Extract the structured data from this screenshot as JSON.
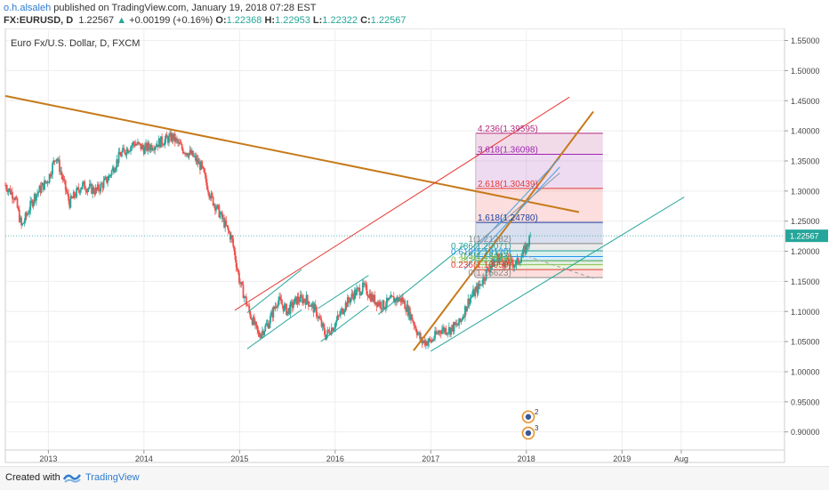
{
  "header": {
    "author": "o.h.alsaleh",
    "published": " published on TradingView.com, January 19, 2018 07:28 EST"
  },
  "quote": {
    "symbol": "FX:EURUSD, D",
    "last": "1.22567",
    "change": "+0.00199 (+0.16%)",
    "o_label": "O:",
    "o": "1.22368",
    "h_label": "H:",
    "h": "1.22953",
    "l_label": "L:",
    "l": "1.22322",
    "c_label": "C:",
    "c": "1.22567"
  },
  "footer": {
    "created": "Created with",
    "brand": "TradingView"
  },
  "chart_data": {
    "type": "candlestick",
    "title": "Euro Fx/U.S. Dollar, D, FXCM",
    "ylim": [
      0.87,
      1.57
    ],
    "xlim": [
      2012.55,
      2020.7
    ],
    "y_ticks": [
      "1.55000",
      "1.50000",
      "1.45000",
      "1.40000",
      "1.35000",
      "1.30000",
      "1.25000",
      "1.20000",
      "1.15000",
      "1.10000",
      "1.05000",
      "1.00000",
      "0.95000",
      "0.90000"
    ],
    "x_ticks": [
      {
        "label": "2013",
        "x": 2013.0
      },
      {
        "label": "2014",
        "x": 2014.0
      },
      {
        "label": "2015",
        "x": 2015.0
      },
      {
        "label": "2016",
        "x": 2016.0
      },
      {
        "label": "2017",
        "x": 2017.0
      },
      {
        "label": "2018",
        "x": 2018.0
      },
      {
        "label": "2019",
        "x": 2019.0
      },
      {
        "label": "Aug",
        "x": 2019.62
      }
    ],
    "price_path": [
      [
        2012.55,
        1.31
      ],
      [
        2012.65,
        1.29
      ],
      [
        2012.72,
        1.24
      ],
      [
        2012.85,
        1.29
      ],
      [
        2013.0,
        1.32
      ],
      [
        2013.08,
        1.36
      ],
      [
        2013.22,
        1.28
      ],
      [
        2013.35,
        1.31
      ],
      [
        2013.5,
        1.3
      ],
      [
        2013.62,
        1.32
      ],
      [
        2013.75,
        1.36
      ],
      [
        2013.9,
        1.38
      ],
      [
        2014.0,
        1.37
      ],
      [
        2014.15,
        1.38
      ],
      [
        2014.3,
        1.39
      ],
      [
        2014.4,
        1.37
      ],
      [
        2014.5,
        1.36
      ],
      [
        2014.6,
        1.34
      ],
      [
        2014.7,
        1.29
      ],
      [
        2014.8,
        1.26
      ],
      [
        2014.92,
        1.22
      ],
      [
        2015.0,
        1.15
      ],
      [
        2015.1,
        1.1
      ],
      [
        2015.2,
        1.06
      ],
      [
        2015.3,
        1.08
      ],
      [
        2015.4,
        1.12
      ],
      [
        2015.5,
        1.1
      ],
      [
        2015.6,
        1.12
      ],
      [
        2015.7,
        1.12
      ],
      [
        2015.8,
        1.1
      ],
      [
        2015.9,
        1.06
      ],
      [
        2016.0,
        1.08
      ],
      [
        2016.1,
        1.11
      ],
      [
        2016.2,
        1.13
      ],
      [
        2016.3,
        1.14
      ],
      [
        2016.4,
        1.12
      ],
      [
        2016.5,
        1.11
      ],
      [
        2016.6,
        1.12
      ],
      [
        2016.7,
        1.12
      ],
      [
        2016.8,
        1.09
      ],
      [
        2016.9,
        1.05
      ],
      [
        2017.0,
        1.05
      ],
      [
        2017.1,
        1.07
      ],
      [
        2017.2,
        1.07
      ],
      [
        2017.3,
        1.08
      ],
      [
        2017.4,
        1.12
      ],
      [
        2017.5,
        1.14
      ],
      [
        2017.6,
        1.17
      ],
      [
        2017.7,
        1.19
      ],
      [
        2017.8,
        1.18
      ],
      [
        2017.9,
        1.18
      ],
      [
        2017.98,
        1.2
      ],
      [
        2018.05,
        1.22567
      ]
    ],
    "last_price": "1.22567",
    "fibonacci": [
      {
        "level": "4.236",
        "price": "1.39595",
        "color": "#b0297a"
      },
      {
        "level": "3.618",
        "price": "1.36098",
        "color": "#9c27b0"
      },
      {
        "level": "2.618",
        "price": "1.30439",
        "color": "#e53935"
      },
      {
        "level": "1.618",
        "price": "1.24780",
        "color": "#1e3fa0"
      },
      {
        "level": "1",
        "price": "1.21282",
        "color": "#888888"
      },
      {
        "level": "0.786",
        "price": "1.20071",
        "color": "#26a69a"
      },
      {
        "level": "0.618",
        "price": "1.19120",
        "color": "#2196f3"
      },
      {
        "level": "0.5",
        "price": "1.18443",
        "color": "#43a047"
      },
      {
        "level": "0.382",
        "price": "1.17776",
        "color": "#8bc34a"
      },
      {
        "level": "0.236",
        "price": "1.16959",
        "color": "#e53935"
      },
      {
        "level": "0",
        "price": "1.15623",
        "color": "#888888"
      }
    ],
    "fib_label_texts": [
      "4.236(1.39595)",
      "3.618(1.36098)",
      "2.618(1.30439)",
      "1.618(1.24780)",
      "1(1.21282)",
      "0.786(1.20071)",
      "0.618(1.19120)",
      "0.5(1.18443)",
      "0.382(1.17776)",
      "0.236(1.16959)",
      "0(1.15623)"
    ],
    "fib_x_range": [
      2017.47,
      2018.8
    ],
    "trendlines": [
      {
        "name": "long-downtrend",
        "color": "#c67a1a",
        "width": 2,
        "p1": [
          2012.55,
          1.458
        ],
        "p2": [
          2018.55,
          1.265
        ]
      },
      {
        "name": "steep-uptrend",
        "color": "#c67a1a",
        "width": 2,
        "p1": [
          2016.82,
          1.035
        ],
        "p2": [
          2018.7,
          1.432
        ]
      },
      {
        "name": "red-channel",
        "color": "#e53935",
        "width": 1,
        "p1": [
          2014.95,
          1.102
        ],
        "p2": [
          2018.45,
          1.456
        ]
      },
      {
        "name": "teal-channel-1",
        "color": "#26a69a",
        "width": 1,
        "p1": [
          2015.08,
          1.038
        ],
        "p2": [
          2015.65,
          1.103
        ]
      },
      {
        "name": "teal-channel-2",
        "color": "#26a69a",
        "width": 1,
        "p1": [
          2015.08,
          1.098
        ],
        "p2": [
          2015.65,
          1.17
        ]
      },
      {
        "name": "teal-channel-3",
        "color": "#26a69a",
        "width": 1,
        "p1": [
          2015.85,
          1.05
        ],
        "p2": [
          2016.35,
          1.11
        ]
      },
      {
        "name": "teal-channel-4",
        "color": "#26a69a",
        "width": 1,
        "p1": [
          2015.82,
          1.105
        ],
        "p2": [
          2016.35,
          1.16
        ]
      },
      {
        "name": "teal-channel-5",
        "color": "#26a69a",
        "width": 1,
        "p1": [
          2016.45,
          1.095
        ],
        "p2": [
          2017.35,
          1.21
        ]
      },
      {
        "name": "lower-green",
        "color": "#26a69a",
        "width": 1,
        "p1": [
          2017.0,
          1.034
        ],
        "p2": [
          2019.65,
          1.29
        ]
      },
      {
        "name": "fan-1",
        "color": "#4aa3df",
        "width": 1,
        "p1": [
          2017.35,
          1.185
        ],
        "p2": [
          2018.35,
          1.355
        ]
      },
      {
        "name": "fan-2",
        "color": "#4aa3df",
        "width": 1,
        "p1": [
          2017.35,
          1.17
        ],
        "p2": [
          2018.35,
          1.34
        ]
      },
      {
        "name": "fan-3",
        "color": "#8a9aa6",
        "width": 1,
        "p1": [
          2017.35,
          1.195
        ],
        "p2": [
          2018.35,
          1.33
        ]
      },
      {
        "name": "dashed-projection",
        "color": "#9e9e9e",
        "width": 1,
        "dash": "4,3",
        "p1": [
          2017.95,
          1.195
        ],
        "p2": [
          2018.7,
          1.155
        ]
      }
    ],
    "event_markers": [
      {
        "x": 2018.02,
        "y": 0.925,
        "label": "2"
      },
      {
        "x": 2018.02,
        "y": 0.898,
        "label": "3"
      }
    ],
    "colors": {
      "up": "#26a69a",
      "down": "#ef5350",
      "grid": "#eeeeee",
      "last_price_bg": "#26a69a"
    }
  }
}
